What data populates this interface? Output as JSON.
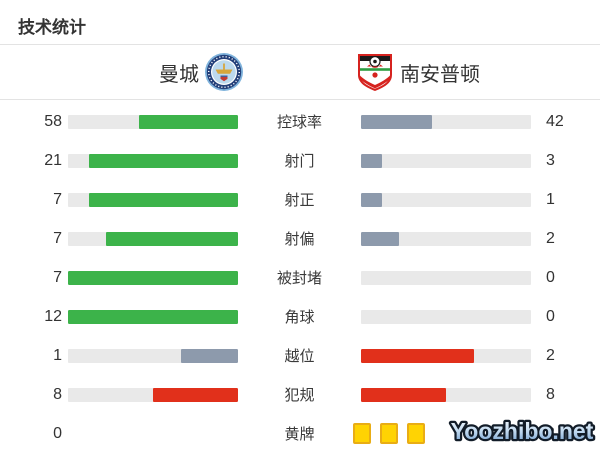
{
  "title": "技术统计",
  "teams": {
    "home": {
      "name": "曼城",
      "logo_icon": "man-city-badge-icon"
    },
    "away": {
      "name": "南安普顿",
      "logo_icon": "southampton-badge-icon"
    }
  },
  "colors": {
    "green": "#3cb34a",
    "slate": "#8d9aac",
    "red": "#e1301b",
    "track": "#e9e9e9",
    "divider": "#e3e3e3",
    "yellow_card": "#ffd303",
    "yellow_card_border": "#e9ad15",
    "text": "#333333"
  },
  "stats": {
    "rows": [
      {
        "label": "控球率",
        "home": {
          "value": "58",
          "pct": 58,
          "color": "green"
        },
        "away": {
          "value": "42",
          "pct": 42,
          "color": "slate"
        }
      },
      {
        "label": "射门",
        "home": {
          "value": "21",
          "pct": 87.5,
          "color": "green"
        },
        "away": {
          "value": "3",
          "pct": 12.5,
          "color": "slate"
        }
      },
      {
        "label": "射正",
        "home": {
          "value": "7",
          "pct": 87.5,
          "color": "green"
        },
        "away": {
          "value": "1",
          "pct": 12.5,
          "color": "slate"
        }
      },
      {
        "label": "射偏",
        "home": {
          "value": "7",
          "pct": 77.8,
          "color": "green"
        },
        "away": {
          "value": "2",
          "pct": 22.2,
          "color": "slate"
        }
      },
      {
        "label": "被封堵",
        "home": {
          "value": "7",
          "pct": 100,
          "color": "green"
        },
        "away": {
          "value": "0",
          "pct": 0,
          "color": "slate"
        }
      },
      {
        "label": "角球",
        "home": {
          "value": "12",
          "pct": 100,
          "color": "green"
        },
        "away": {
          "value": "0",
          "pct": 0,
          "color": "slate"
        }
      },
      {
        "label": "越位",
        "home": {
          "value": "1",
          "pct": 33.3,
          "color": "slate"
        },
        "away": {
          "value": "2",
          "pct": 66.7,
          "color": "red"
        }
      },
      {
        "label": "犯规",
        "home": {
          "value": "8",
          "pct": 50,
          "color": "red"
        },
        "away": {
          "value": "8",
          "pct": 50,
          "color": "red"
        }
      },
      {
        "label": "黄牌",
        "home": {
          "value": "0",
          "cards": 0
        },
        "away": {
          "value": "3",
          "cards": 3
        }
      }
    ]
  },
  "watermark": {
    "text": "Yoozhibo.net"
  },
  "chart_data": {
    "type": "bar",
    "title": "技术统计",
    "orientation": "mirrored-horizontal",
    "categories": [
      "控球率",
      "射门",
      "射正",
      "射偏",
      "被封堵",
      "角球",
      "越位",
      "犯规",
      "黄牌"
    ],
    "series": [
      {
        "name": "曼城",
        "values": [
          58,
          21,
          7,
          7,
          7,
          12,
          1,
          8,
          0
        ]
      },
      {
        "name": "南安普顿",
        "values": [
          42,
          3,
          1,
          2,
          0,
          0,
          2,
          8,
          3
        ]
      }
    ],
    "notes": "Each bar fill = value / (home value + away value); 黄牌 row drawn as yellow card icons instead of bars",
    "legend_position": "top",
    "grid": false
  }
}
